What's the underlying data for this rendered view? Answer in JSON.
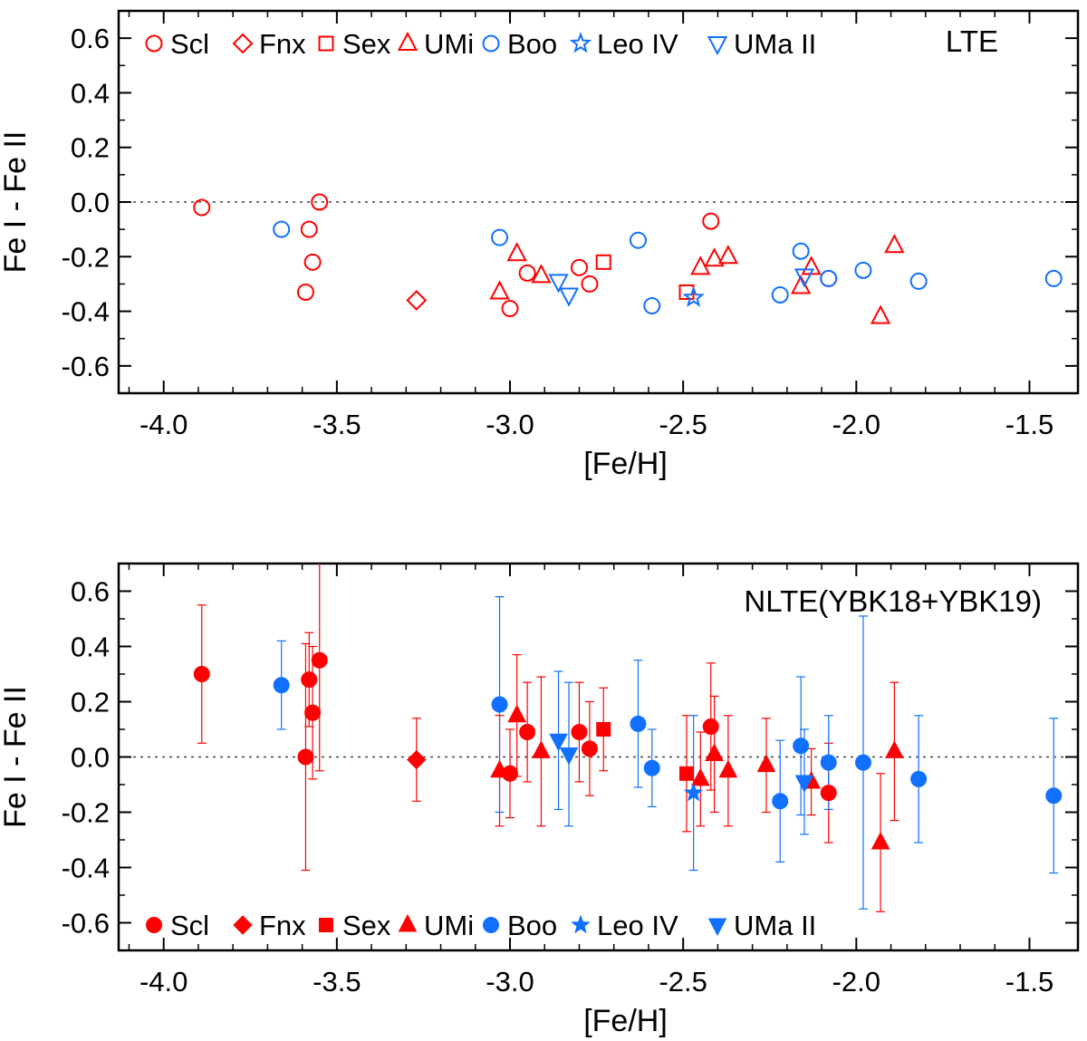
{
  "colors": {
    "red": "#ff0000",
    "blue": "#1170ff",
    "axis": "#000000"
  },
  "legend": [
    {
      "name": "Scl",
      "marker": "circle",
      "color": "red"
    },
    {
      "name": "Fnx",
      "marker": "diamond",
      "color": "red"
    },
    {
      "name": "Sex",
      "marker": "square",
      "color": "red"
    },
    {
      "name": "UMi",
      "marker": "triangle-up",
      "color": "red"
    },
    {
      "name": "Boo",
      "marker": "circle",
      "color": "blue"
    },
    {
      "name": "Leo IV",
      "marker": "star",
      "color": "blue"
    },
    {
      "name": "UMa II",
      "marker": "triangle-down",
      "color": "blue"
    }
  ],
  "chart_data": [
    {
      "type": "scatter",
      "title": "LTE",
      "xlabel": "[Fe/H]",
      "ylabel": "Fe I - Fe II",
      "xlim": [
        -4.13,
        -1.36
      ],
      "ylim": [
        -0.7,
        0.7
      ],
      "xticks": [
        -4.0,
        -3.5,
        -3.0,
        -2.5,
        -2.0,
        -1.5
      ],
      "xtick_labels": [
        "-4.0",
        "-3.5",
        "-3.0",
        "-2.5",
        "-2.0",
        "-1.5"
      ],
      "yticks": [
        0.6,
        0.4,
        0.2,
        0.0,
        -0.2,
        -0.4,
        -0.6
      ],
      "ytick_labels": [
        "0.6",
        "0.4",
        "0.2",
        "0.0",
        "-0.2",
        "-0.4",
        "-0.6"
      ],
      "reference_line": 0.0,
      "filled": false,
      "legend_position": "top",
      "series": [
        {
          "name": "Scl",
          "points": [
            {
              "x": -3.89,
              "y": -0.02
            },
            {
              "x": -3.55,
              "y": 0.0
            },
            {
              "x": -3.58,
              "y": -0.1
            },
            {
              "x": -3.57,
              "y": -0.22
            },
            {
              "x": -3.59,
              "y": -0.33
            },
            {
              "x": -3.0,
              "y": -0.39
            },
            {
              "x": -2.95,
              "y": -0.26
            },
            {
              "x": -2.8,
              "y": -0.24
            },
            {
              "x": -2.77,
              "y": -0.3
            },
            {
              "x": -2.42,
              "y": -0.07
            },
            {
              "x": -2.08,
              "y": -0.28
            }
          ]
        },
        {
          "name": "Fnx",
          "points": [
            {
              "x": -3.27,
              "y": -0.36
            }
          ]
        },
        {
          "name": "Sex",
          "points": [
            {
              "x": -2.73,
              "y": -0.22
            },
            {
              "x": -2.49,
              "y": -0.33
            }
          ]
        },
        {
          "name": "UMi",
          "points": [
            {
              "x": -3.03,
              "y": -0.33
            },
            {
              "x": -2.98,
              "y": -0.19
            },
            {
              "x": -2.91,
              "y": -0.27
            },
            {
              "x": -2.45,
              "y": -0.24
            },
            {
              "x": -2.41,
              "y": -0.21
            },
            {
              "x": -2.37,
              "y": -0.2
            },
            {
              "x": -2.16,
              "y": -0.31
            },
            {
              "x": -2.13,
              "y": -0.24
            },
            {
              "x": -1.93,
              "y": -0.42
            },
            {
              "x": -1.89,
              "y": -0.16
            }
          ]
        },
        {
          "name": "Boo",
          "points": [
            {
              "x": -3.66,
              "y": -0.1
            },
            {
              "x": -3.03,
              "y": -0.13
            },
            {
              "x": -2.63,
              "y": -0.14
            },
            {
              "x": -2.59,
              "y": -0.38
            },
            {
              "x": -2.22,
              "y": -0.34
            },
            {
              "x": -2.16,
              "y": -0.18
            },
            {
              "x": -2.08,
              "y": -0.28
            },
            {
              "x": -1.98,
              "y": -0.25
            },
            {
              "x": -1.82,
              "y": -0.29
            },
            {
              "x": -1.43,
              "y": -0.28
            }
          ]
        },
        {
          "name": "Leo IV",
          "points": [
            {
              "x": -2.47,
              "y": -0.35
            }
          ]
        },
        {
          "name": "UMa II",
          "points": [
            {
              "x": -2.86,
              "y": -0.29
            },
            {
              "x": -2.83,
              "y": -0.34
            },
            {
              "x": -2.15,
              "y": -0.27
            }
          ]
        }
      ]
    },
    {
      "type": "scatter",
      "title": "NLTE(YBK18+YBK19)",
      "xlabel": "[Fe/H]",
      "ylabel": "Fe I - Fe II",
      "xlim": [
        -4.13,
        -1.36
      ],
      "ylim": [
        -0.7,
        0.7
      ],
      "xticks": [
        -4.0,
        -3.5,
        -3.0,
        -2.5,
        -2.0,
        -1.5
      ],
      "xtick_labels": [
        "-4.0",
        "-3.5",
        "-3.0",
        "-2.5",
        "-2.0",
        "-1.5"
      ],
      "yticks": [
        0.6,
        0.4,
        0.2,
        0.0,
        -0.2,
        -0.4,
        -0.6
      ],
      "ytick_labels": [
        "0.6",
        "0.4",
        "0.2",
        "0.0",
        "-0.2",
        "-0.4",
        "-0.6"
      ],
      "reference_line": 0.0,
      "filled": true,
      "legend_position": "bottom",
      "series": [
        {
          "name": "Scl",
          "points": [
            {
              "x": -3.89,
              "y": 0.3,
              "err": 0.25
            },
            {
              "x": -3.55,
              "y": 0.35,
              "err": 0.4
            },
            {
              "x": -3.58,
              "y": 0.28,
              "err": 0.17
            },
            {
              "x": -3.57,
              "y": 0.16,
              "err": 0.24
            },
            {
              "x": -3.59,
              "y": 0.0,
              "err": 0.41
            },
            {
              "x": -3.0,
              "y": -0.06,
              "err": 0.16
            },
            {
              "x": -2.95,
              "y": 0.09,
              "err": 0.18
            },
            {
              "x": -2.8,
              "y": 0.09,
              "err": 0.18
            },
            {
              "x": -2.77,
              "y": 0.03,
              "err": 0.17
            },
            {
              "x": -2.42,
              "y": 0.11,
              "err": 0.23
            },
            {
              "x": -2.08,
              "y": -0.13,
              "err": 0.18
            }
          ]
        },
        {
          "name": "Fnx",
          "points": [
            {
              "x": -3.27,
              "y": -0.01,
              "err": 0.15
            }
          ]
        },
        {
          "name": "Sex",
          "points": [
            {
              "x": -2.73,
              "y": 0.1,
              "err": 0.15
            },
            {
              "x": -2.49,
              "y": -0.06,
              "err": 0.21
            }
          ]
        },
        {
          "name": "UMi",
          "points": [
            {
              "x": -3.03,
              "y": -0.05,
              "err": 0.2
            },
            {
              "x": -2.98,
              "y": 0.15,
              "err": 0.22
            },
            {
              "x": -2.91,
              "y": 0.02,
              "err": 0.27
            },
            {
              "x": -2.45,
              "y": -0.08,
              "err": 0.17
            },
            {
              "x": -2.41,
              "y": 0.01,
              "err": 0.21
            },
            {
              "x": -2.37,
              "y": -0.05,
              "err": 0.2
            },
            {
              "x": -2.26,
              "y": -0.03,
              "err": 0.17
            },
            {
              "x": -2.13,
              "y": -0.09,
              "err": 0.12
            },
            {
              "x": -1.93,
              "y": -0.31,
              "err": 0.25
            },
            {
              "x": -1.89,
              "y": 0.02,
              "err": 0.25
            }
          ]
        },
        {
          "name": "Boo",
          "points": [
            {
              "x": -3.66,
              "y": 0.26,
              "err": 0.16
            },
            {
              "x": -3.03,
              "y": 0.19,
              "err": 0.39
            },
            {
              "x": -2.63,
              "y": 0.12,
              "err": 0.23
            },
            {
              "x": -2.59,
              "y": -0.04,
              "err": 0.14
            },
            {
              "x": -2.22,
              "y": -0.16,
              "err": 0.22
            },
            {
              "x": -2.16,
              "y": 0.04,
              "err": 0.25
            },
            {
              "x": -2.08,
              "y": -0.02,
              "err": 0.17
            },
            {
              "x": -1.98,
              "y": -0.02,
              "err": 0.53
            },
            {
              "x": -1.82,
              "y": -0.08,
              "err": 0.23
            },
            {
              "x": -1.43,
              "y": -0.14,
              "err": 0.28
            }
          ]
        },
        {
          "name": "Leo IV",
          "points": [
            {
              "x": -2.47,
              "y": -0.13,
              "err": 0.28
            }
          ]
        },
        {
          "name": "UMa II",
          "points": [
            {
              "x": -2.86,
              "y": 0.06,
              "err": 0.25
            },
            {
              "x": -2.83,
              "y": 0.01,
              "err": 0.26
            },
            {
              "x": -2.15,
              "y": -0.09,
              "err": 0.19
            }
          ]
        }
      ]
    }
  ]
}
